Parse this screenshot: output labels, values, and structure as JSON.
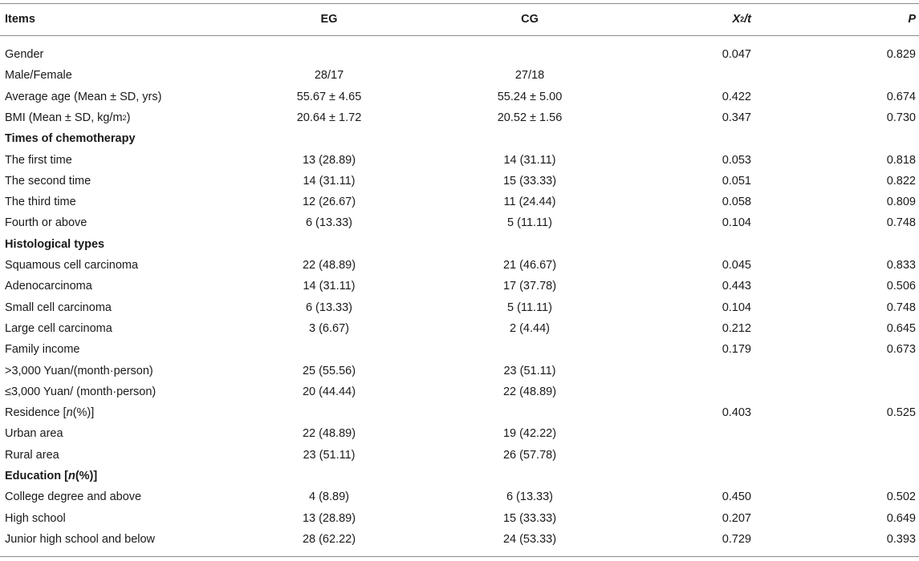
{
  "header": {
    "items": "Items",
    "eg": "EG",
    "cg": "CG",
    "x2_base": "X",
    "x2_sup": "2",
    "x2_tail": "/t",
    "p": "P"
  },
  "rows": [
    {
      "item": "Gender",
      "eg": "",
      "cg": "",
      "x2": "0.047",
      "p": "0.829"
    },
    {
      "item": "Male/Female",
      "eg": "28/17",
      "cg": "27/18",
      "x2": "",
      "p": ""
    },
    {
      "item": "Average age (Mean ± SD, yrs)",
      "eg": "55.67 ± 4.65",
      "cg": "55.24 ± 5.00",
      "x2": "0.422",
      "p": "0.674"
    },
    {
      "item": "BMI (Mean ± SD, kg/m",
      "item_sup": "2",
      "item_tail": ")",
      "eg": "20.64 ± 1.72",
      "cg": "20.52 ± 1.56",
      "x2": "0.347",
      "p": "0.730"
    },
    {
      "item": "Times of chemotherapy",
      "eg": "",
      "cg": "",
      "x2": "",
      "p": ""
    },
    {
      "item": "The first time",
      "eg": "13 (28.89)",
      "cg": "14 (31.11)",
      "x2": "0.053",
      "p": "0.818"
    },
    {
      "item": "The second time",
      "eg": "14 (31.11)",
      "cg": "15 (33.33)",
      "x2": "0.051",
      "p": "0.822"
    },
    {
      "item": "The third time",
      "eg": "12 (26.67)",
      "cg": "11 (24.44)",
      "x2": "0.058",
      "p": "0.809"
    },
    {
      "item": "Fourth or above",
      "eg": "6 (13.33)",
      "cg": "5 (11.11)",
      "x2": "0.104",
      "p": "0.748"
    },
    {
      "item": "Histological types",
      "eg": "",
      "cg": "",
      "x2": "",
      "p": ""
    },
    {
      "item": "Squamous cell carcinoma",
      "eg": "22 (48.89)",
      "cg": "21 (46.67)",
      "x2": "0.045",
      "p": "0.833"
    },
    {
      "item": "Adenocarcinoma",
      "eg": "14 (31.11)",
      "cg": "17 (37.78)",
      "x2": "0.443",
      "p": "0.506"
    },
    {
      "item": "Small cell carcinoma",
      "eg": "6 (13.33)",
      "cg": "5 (11.11)",
      "x2": "0.104",
      "p": "0.748"
    },
    {
      "item": "Large cell carcinoma",
      "eg": "3 (6.67)",
      "cg": "2 (4.44)",
      "x2": "0.212",
      "p": "0.645"
    },
    {
      "item": "Family income",
      "eg": "",
      "cg": "",
      "x2": "0.179",
      "p": "0.673"
    },
    {
      "item": ">3,000 Yuan/(month·person)",
      "eg": "25 (55.56)",
      "cg": "23 (51.11)",
      "x2": "",
      "p": ""
    },
    {
      "item": "≤3,000 Yuan/ (month·person)",
      "eg": "20 (44.44)",
      "cg": "22 (48.89)",
      "x2": "",
      "p": ""
    },
    {
      "item": "Residence [",
      "item_ital": "n",
      "item_tail": " (%)]",
      "eg": "",
      "cg": "",
      "x2": "0.403",
      "p": "0.525"
    },
    {
      "item": "Urban area",
      "eg": "22 (48.89)",
      "cg": "19 (42.22)",
      "x2": "",
      "p": ""
    },
    {
      "item": "Rural area",
      "eg": "23 (51.11)",
      "cg": "26 (57.78)",
      "x2": "",
      "p": ""
    },
    {
      "item": "Education [",
      "item_ital": "n",
      "item_tail": " (%)]",
      "eg": "",
      "cg": "",
      "x2": "",
      "p": ""
    },
    {
      "item": "College degree and above",
      "eg": "4 (8.89)",
      "cg": "6 (13.33)",
      "x2": "0.450",
      "p": "0.502"
    },
    {
      "item": "High school",
      "eg": "13 (28.89)",
      "cg": "15 (33.33)",
      "x2": "0.207",
      "p": "0.649"
    },
    {
      "item": "Junior high school and below",
      "eg": "28 (62.22)",
      "cg": "24 (53.33)",
      "x2": "0.729",
      "p": "0.393"
    }
  ]
}
